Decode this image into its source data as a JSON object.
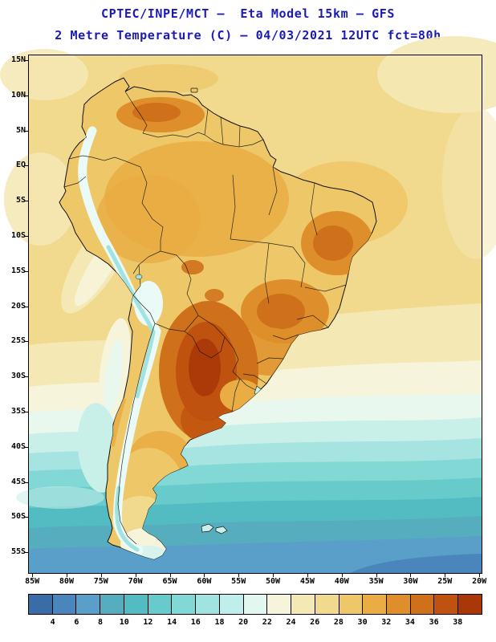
{
  "header": {
    "title_line1": "CPTEC/INPE/MCT –  Eta Model 15km – GFS",
    "title_line2": "2 Metre Temperature (C) – 04/03/2021 12UTC fct=80h",
    "title_color": "#1b1bb3"
  },
  "map": {
    "region": "South America",
    "lat_ticks": [
      "15N",
      "10N",
      "5N",
      "EQ",
      "5S",
      "10S",
      "15S",
      "20S",
      "25S",
      "30S",
      "35S",
      "40S",
      "45S",
      "50S",
      "55S"
    ],
    "lon_ticks": [
      "85W",
      "80W",
      "75W",
      "70W",
      "65W",
      "60W",
      "55W",
      "50W",
      "45W",
      "40W",
      "35W",
      "30W",
      "25W",
      "20W"
    ]
  },
  "colorbar": {
    "unit": "C",
    "tick_labels": [
      "4",
      "6",
      "8",
      "10",
      "12",
      "14",
      "16",
      "18",
      "20",
      "22",
      "24",
      "26",
      "28",
      "30",
      "32",
      "34",
      "36",
      "38"
    ],
    "segment_colors": [
      "#3a6ca8",
      "#4a86bb",
      "#5a9fc9",
      "#55adbd",
      "#52bcc2",
      "#66cbca",
      "#82d8d5",
      "#a0e3e0",
      "#c0eeea",
      "#e2f7ef",
      "#f6f4da",
      "#f4e8b4",
      "#f1da8e",
      "#eec768",
      "#e9ad44",
      "#de8f2b",
      "#cf701b",
      "#bf520f",
      "#a93708"
    ]
  }
}
